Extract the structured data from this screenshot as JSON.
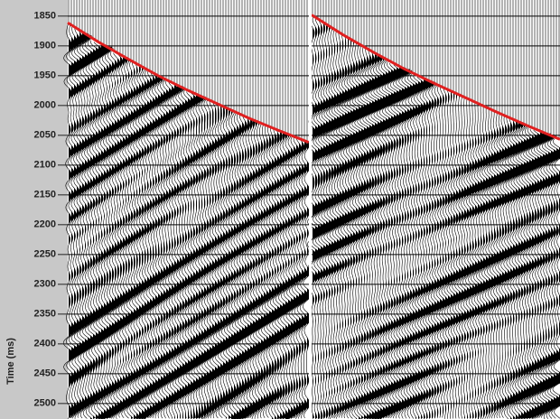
{
  "chart_data": [
    {
      "type": "line",
      "y_label": "Time (ms)",
      "ylim": [
        1823,
        2526
      ],
      "yticks": [
        1850,
        1900,
        1950,
        2000,
        2050,
        2100,
        2150,
        2200,
        2250,
        2300,
        2350,
        2400,
        2450,
        2500
      ],
      "grid": true,
      "series": [
        {
          "color": "#e02020",
          "values": [
            1861,
            1893,
            1922,
            1950,
            1975,
            1998,
            2021,
            2042,
            2062
          ]
        }
      ]
    },
    {
      "type": "line",
      "ylim": [
        1823,
        2526
      ],
      "grid": true,
      "series": [
        {
          "color": "#e02020",
          "values": [
            1848,
            1881,
            1911,
            1939,
            1964,
            1988,
            2012,
            2035,
            2057
          ]
        }
      ]
    }
  ]
}
